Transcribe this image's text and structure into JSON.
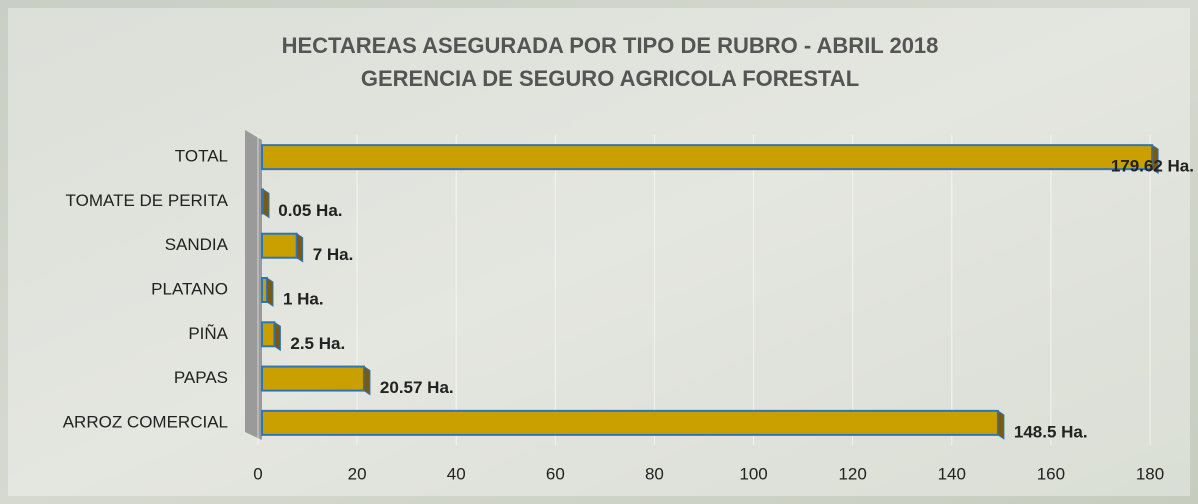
{
  "chart_data": {
    "type": "bar",
    "orientation": "horizontal",
    "title": "HECTAREAS ASEGURADA POR TIPO DE RUBRO - ABRIL 2018",
    "subtitle": "GERENCIA DE SEGURO AGRICOLA FORESTAL",
    "categories": [
      "TOTAL",
      "TOMATE DE PERITA",
      "SANDIA",
      "PLATANO",
      "PIÑA",
      "PAPAS",
      "ARROZ COMERCIAL"
    ],
    "values": [
      179.62,
      0.05,
      7,
      1,
      2.5,
      20.57,
      148.5
    ],
    "value_labels": [
      "179.62 Ha.",
      "0.05 Ha.",
      "7 Ha.",
      "1 Ha.",
      "2.5 Ha.",
      "20.57 Ha.",
      "148.5 Ha."
    ],
    "color": "#c9a000",
    "xlim": [
      0,
      180
    ],
    "xticks": [
      0,
      20,
      40,
      60,
      80,
      100,
      120,
      140,
      160,
      180
    ],
    "grid": true
  }
}
